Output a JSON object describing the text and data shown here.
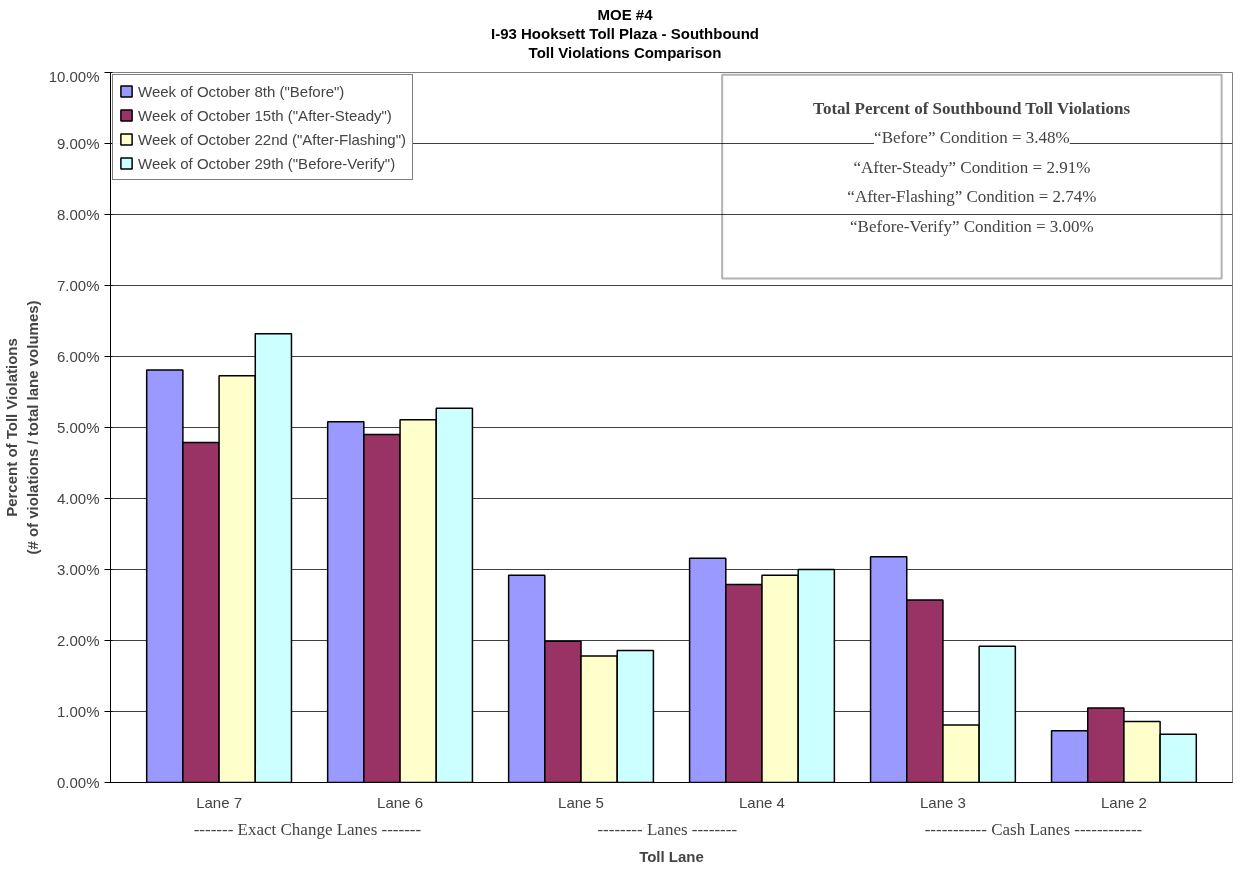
{
  "chart_data": {
    "type": "bar",
    "title": "MOE #4\nI-93 Hooksett Toll Plaza - Southbound\nToll Violations Comparison",
    "xlabel": "Toll Lane",
    "ylabel": "Percent of Toll Violations\n(# of violations / total lane volumes)",
    "categories": [
      "Lane 7",
      "Lane 6",
      "Lane 5",
      "Lane 4",
      "Lane 3",
      "Lane 2"
    ],
    "series": [
      {
        "name": "Week of October 8th (\"Before\")",
        "color": "#9999ff",
        "values": [
          5.81,
          5.08,
          2.92,
          3.16,
          3.18,
          0.73
        ]
      },
      {
        "name": "Week of October 15th (\"After-Steady\")",
        "color": "#993366",
        "values": [
          4.79,
          4.9,
          1.99,
          2.79,
          2.57,
          1.05
        ]
      },
      {
        "name": "Week of October 22nd (\"After-Flashing\")",
        "color": "#ffffcc",
        "values": [
          5.73,
          5.11,
          1.78,
          2.92,
          0.81,
          0.86
        ]
      },
      {
        "name": "Week of October 29th (\"Before-Verify\")",
        "color": "#ccffff",
        "values": [
          6.32,
          5.27,
          1.86,
          3.0,
          1.92,
          0.68
        ]
      }
    ],
    "ylim": [
      0,
      10
    ],
    "yticks": [
      {
        "value": 0,
        "label": "0.00%"
      },
      {
        "value": 1,
        "label": "1.00%"
      },
      {
        "value": 2,
        "label": "2.00%"
      },
      {
        "value": 3,
        "label": "3.00%"
      },
      {
        "value": 4,
        "label": "4.00%"
      },
      {
        "value": 5,
        "label": "5.00%"
      },
      {
        "value": 6,
        "label": "6.00%"
      },
      {
        "value": 7,
        "label": "7.00%"
      },
      {
        "value": 8,
        "label": "8.00%"
      },
      {
        "value": 9,
        "label": "9.00%"
      },
      {
        "value": 10,
        "label": "10.00%"
      }
    ],
    "grid": "y",
    "legend": "top left",
    "annotations": [
      "-------  Exact Change Lanes -------",
      "--------  Lanes  --------",
      "----------- Cash Lanes ------------",
      "Total Percent of Southbound Toll Violations",
      "“Before” Condition = 3.48%",
      "“After-Steady” Condition = 2.91%",
      "“After-Flashing” Condition = 2.74%",
      "“Before-Verify” Condition = 3.00%"
    ]
  }
}
